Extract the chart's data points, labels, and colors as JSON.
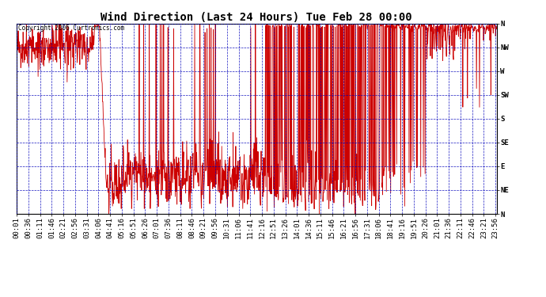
{
  "title": "Wind Direction (Last 24 Hours) Tue Feb 28 00:00",
  "copyright": "Copyright 2006 Curtronics.com",
  "yticks": [
    0,
    45,
    90,
    135,
    180,
    225,
    270,
    315,
    360
  ],
  "yticklabels": [
    "N",
    "NE",
    "E",
    "SE",
    "S",
    "SW",
    "W",
    "NW",
    "N"
  ],
  "ylim": [
    0,
    360
  ],
  "line_color": "#cc0000",
  "grid_color": "#0000bb",
  "bg_color": "#ffffff",
  "title_fontsize": 10,
  "tick_fontsize": 6.5
}
